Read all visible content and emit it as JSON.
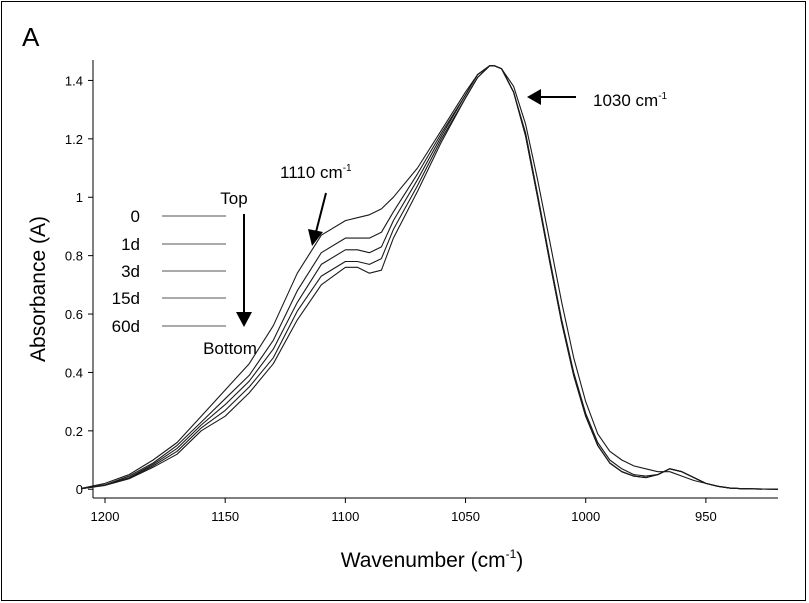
{
  "panel_label": "A",
  "chart_data": {
    "type": "line",
    "xlabel": "Wavenumber (cm",
    "xlabel_sup": "-1",
    "xlabel_tail": ")",
    "ylabel": "Absorbance (A)",
    "xlim": [
      1205,
      920
    ],
    "ylim": [
      -0.03,
      1.47
    ],
    "x_ticks": [
      1200,
      1150,
      1100,
      1050,
      1000,
      950
    ],
    "x_tick_labels": [
      "1200",
      "1150",
      "1100",
      "1050",
      "1000",
      "950"
    ],
    "y_ticks": [
      0,
      0.2,
      0.4,
      0.6,
      0.8,
      1.0,
      1.2,
      1.4
    ],
    "y_tick_labels": [
      "0",
      "0.2",
      "0.4",
      "0.6",
      "0.8",
      "1",
      "1.2",
      "1.4"
    ],
    "x_reversed": true,
    "grid": false,
    "annotations": {
      "peak_1030": {
        "text": "1030 cm",
        "sup": "-1",
        "x": 1032,
        "y": 1.44
      },
      "peak_1110": {
        "text": "1110 cm",
        "sup": "-1",
        "x": 1113,
        "y": 0.85
      },
      "top_label": "Top",
      "bottom_label": "Bottom"
    },
    "x": [
      1210,
      1200,
      1190,
      1180,
      1170,
      1160,
      1150,
      1140,
      1130,
      1120,
      1110,
      1100,
      1095,
      1090,
      1085,
      1080,
      1070,
      1060,
      1050,
      1045,
      1040,
      1038,
      1035,
      1030,
      1025,
      1020,
      1015,
      1010,
      1005,
      1000,
      995,
      990,
      985,
      980,
      975,
      970,
      965,
      960,
      955,
      950,
      945,
      940,
      935,
      930,
      920
    ],
    "series": [
      {
        "name": "0",
        "values": [
          0.003,
          0.02,
          0.05,
          0.1,
          0.16,
          0.25,
          0.34,
          0.43,
          0.56,
          0.74,
          0.87,
          0.92,
          0.93,
          0.94,
          0.96,
          1.0,
          1.1,
          1.23,
          1.36,
          1.42,
          1.45,
          1.45,
          1.44,
          1.38,
          1.25,
          1.06,
          0.85,
          0.64,
          0.45,
          0.3,
          0.19,
          0.13,
          0.1,
          0.08,
          0.07,
          0.06,
          0.06,
          0.045,
          0.03,
          0.02,
          0.01,
          0.004,
          0.002,
          0.001,
          0.0
        ]
      },
      {
        "name": "1d",
        "values": [
          0.002,
          0.015,
          0.045,
          0.09,
          0.15,
          0.23,
          0.31,
          0.39,
          0.51,
          0.68,
          0.81,
          0.86,
          0.86,
          0.86,
          0.88,
          0.95,
          1.08,
          1.22,
          1.35,
          1.42,
          1.45,
          1.45,
          1.44,
          1.36,
          1.22,
          1.01,
          0.79,
          0.58,
          0.4,
          0.26,
          0.16,
          0.1,
          0.07,
          0.05,
          0.045,
          0.05,
          0.07,
          0.06,
          0.04,
          0.02,
          0.01,
          0.004,
          0.002,
          0.001,
          0.0
        ]
      },
      {
        "name": "3d",
        "values": [
          0.002,
          0.015,
          0.04,
          0.085,
          0.14,
          0.22,
          0.29,
          0.37,
          0.48,
          0.64,
          0.77,
          0.82,
          0.82,
          0.81,
          0.83,
          0.92,
          1.06,
          1.21,
          1.35,
          1.42,
          1.45,
          1.45,
          1.44,
          1.36,
          1.21,
          1.0,
          0.78,
          0.57,
          0.39,
          0.25,
          0.15,
          0.09,
          0.06,
          0.045,
          0.04,
          0.05,
          0.07,
          0.06,
          0.04,
          0.02,
          0.01,
          0.004,
          0.002,
          0.001,
          0.0
        ]
      },
      {
        "name": "15d",
        "values": [
          0.002,
          0.014,
          0.038,
          0.08,
          0.13,
          0.21,
          0.27,
          0.35,
          0.45,
          0.61,
          0.73,
          0.78,
          0.78,
          0.77,
          0.79,
          0.89,
          1.04,
          1.2,
          1.34,
          1.41,
          1.45,
          1.45,
          1.44,
          1.36,
          1.21,
          1.0,
          0.78,
          0.57,
          0.39,
          0.25,
          0.15,
          0.09,
          0.06,
          0.045,
          0.04,
          0.05,
          0.07,
          0.06,
          0.04,
          0.02,
          0.01,
          0.004,
          0.002,
          0.001,
          0.0
        ]
      },
      {
        "name": "60d",
        "values": [
          0.002,
          0.013,
          0.036,
          0.075,
          0.12,
          0.2,
          0.25,
          0.33,
          0.43,
          0.58,
          0.7,
          0.76,
          0.76,
          0.74,
          0.75,
          0.86,
          1.02,
          1.19,
          1.34,
          1.41,
          1.45,
          1.45,
          1.44,
          1.36,
          1.21,
          1.0,
          0.78,
          0.57,
          0.39,
          0.25,
          0.15,
          0.09,
          0.06,
          0.045,
          0.04,
          0.05,
          0.07,
          0.06,
          0.04,
          0.02,
          0.01,
          0.004,
          0.002,
          0.001,
          0.0
        ]
      }
    ],
    "legend": {
      "labels": [
        "0",
        "1d",
        "3d",
        "15d",
        "60d"
      ],
      "placement": "left"
    }
  }
}
